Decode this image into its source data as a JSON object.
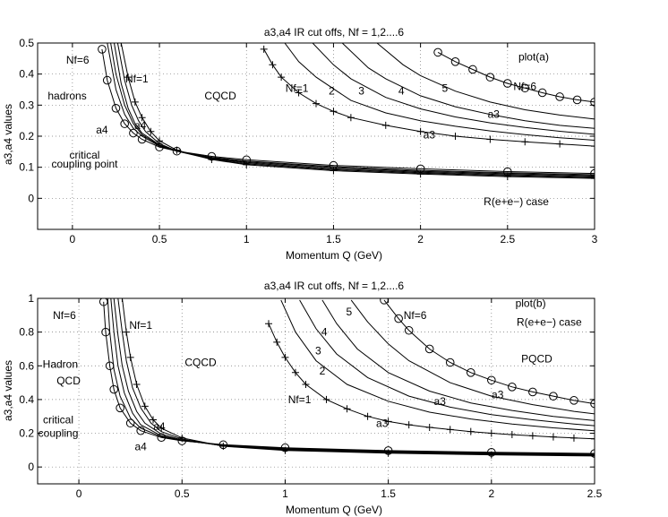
{
  "chart_data": [
    {
      "type": "line",
      "title": "a3,a4 IR cut offs, Nf = 1,2....6",
      "xlabel": "Momentum Q (GeV)",
      "ylabel": "a3,a4 values",
      "xlim": [
        -0.2,
        3
      ],
      "ylim": [
        -0.1,
        0.5
      ],
      "xticks": [
        0,
        0.5,
        1,
        1.5,
        2,
        2.5,
        3
      ],
      "xtick_labels": [
        "0",
        "0.5",
        "1",
        "1.5",
        "2",
        "2.5",
        "3"
      ],
      "yticks": [
        0,
        0.1,
        0.2,
        0.3,
        0.4,
        0.5
      ],
      "ytick_labels": [
        "0",
        "0.1",
        "0.2",
        "0.3",
        "0.4",
        "0.5"
      ],
      "grid": true,
      "annotations": [
        {
          "text": "plot(a)",
          "x": 2.65,
          "y": 0.455
        },
        {
          "text": "Nf=6",
          "x": 0.03,
          "y": 0.445
        },
        {
          "text": "Nf=1",
          "x": 0.37,
          "y": 0.385
        },
        {
          "text": "hadrons",
          "x": -0.03,
          "y": 0.33
        },
        {
          "text": "CQCD",
          "x": 0.85,
          "y": 0.33
        },
        {
          "text": "a4",
          "x": 0.17,
          "y": 0.22
        },
        {
          "text": "a4",
          "x": 0.39,
          "y": 0.235
        },
        {
          "text": "critical",
          "x": 0.07,
          "y": 0.14
        },
        {
          "text": "coupling point",
          "x": 0.07,
          "y": 0.11
        },
        {
          "text": "Nf=1",
          "x": 1.29,
          "y": 0.355
        },
        {
          "text": "2",
          "x": 1.49,
          "y": 0.345
        },
        {
          "text": "3",
          "x": 1.66,
          "y": 0.345
        },
        {
          "text": "4",
          "x": 1.89,
          "y": 0.345
        },
        {
          "text": "5",
          "x": 2.14,
          "y": 0.355
        },
        {
          "text": "Nf=6",
          "x": 2.6,
          "y": 0.36
        },
        {
          "text": "a3",
          "x": 2.42,
          "y": 0.27
        },
        {
          "text": "a3",
          "x": 2.05,
          "y": 0.205
        },
        {
          "text": "R(e+e−) case",
          "x": 2.55,
          "y": -0.01
        }
      ],
      "series": [
        {
          "name": "a4 Nf=6",
          "marker": "o",
          "x": [
            0.17,
            0.2,
            0.25,
            0.3,
            0.35,
            0.4,
            0.5,
            0.6,
            0.8,
            1.0,
            1.5,
            2.0,
            2.5,
            3.0
          ],
          "y": [
            0.48,
            0.38,
            0.29,
            0.24,
            0.21,
            0.19,
            0.165,
            0.152,
            0.135,
            0.124,
            0.106,
            0.095,
            0.086,
            0.08
          ]
        },
        {
          "name": "a4 Nf=5",
          "x": [
            0.2,
            0.25,
            0.3,
            0.35,
            0.4,
            0.5,
            0.6,
            0.8,
            1.0,
            1.5,
            2.0,
            2.5,
            3.0
          ],
          "y": [
            0.5,
            0.35,
            0.27,
            0.225,
            0.2,
            0.168,
            0.152,
            0.132,
            0.12,
            0.102,
            0.09,
            0.082,
            0.076
          ]
        },
        {
          "name": "a4 Nf=4",
          "x": [
            0.22,
            0.25,
            0.3,
            0.35,
            0.4,
            0.5,
            0.6,
            0.8,
            1.0,
            1.5,
            2.0,
            2.5,
            3.0
          ],
          "y": [
            0.5,
            0.4,
            0.3,
            0.24,
            0.205,
            0.17,
            0.152,
            0.13,
            0.117,
            0.099,
            0.087,
            0.079,
            0.073
          ]
        },
        {
          "name": "a4 Nf=3",
          "x": [
            0.24,
            0.28,
            0.32,
            0.36,
            0.4,
            0.5,
            0.6,
            0.8,
            1.0,
            1.5,
            2.0,
            2.5,
            3.0
          ],
          "y": [
            0.5,
            0.37,
            0.29,
            0.24,
            0.21,
            0.172,
            0.152,
            0.128,
            0.114,
            0.095,
            0.084,
            0.076,
            0.07
          ]
        },
        {
          "name": "a4 Nf=2",
          "x": [
            0.26,
            0.3,
            0.34,
            0.38,
            0.42,
            0.5,
            0.6,
            0.8,
            1.0,
            1.5,
            2.0,
            2.5,
            3.0
          ],
          "y": [
            0.5,
            0.38,
            0.3,
            0.25,
            0.215,
            0.176,
            0.152,
            0.126,
            0.111,
            0.092,
            0.081,
            0.073,
            0.067
          ]
        },
        {
          "name": "a4 Nf=1",
          "marker": "+",
          "x": [
            0.28,
            0.32,
            0.36,
            0.4,
            0.45,
            0.5,
            0.6,
            0.8,
            1.0,
            1.5,
            2.0,
            2.5,
            3.0
          ],
          "y": [
            0.5,
            0.39,
            0.31,
            0.26,
            0.215,
            0.185,
            0.155,
            0.125,
            0.108,
            0.089,
            0.078,
            0.07,
            0.064
          ]
        },
        {
          "name": "a3 Nf=6",
          "marker": "o",
          "x": [
            2.1,
            2.2,
            2.3,
            2.4,
            2.5,
            2.6,
            2.7,
            2.8,
            2.9,
            3.0
          ],
          "y": [
            0.47,
            0.44,
            0.415,
            0.39,
            0.37,
            0.355,
            0.34,
            0.327,
            0.317,
            0.31
          ]
        },
        {
          "name": "a3 Nf=5",
          "x": [
            1.75,
            1.9,
            2.0,
            2.2,
            2.4,
            2.6,
            2.8,
            3.0
          ],
          "y": [
            0.5,
            0.43,
            0.395,
            0.345,
            0.31,
            0.285,
            0.268,
            0.255
          ]
        },
        {
          "name": "a3 Nf=4",
          "x": [
            1.55,
            1.7,
            1.8,
            2.0,
            2.2,
            2.4,
            2.6,
            2.8,
            3.0
          ],
          "y": [
            0.5,
            0.42,
            0.385,
            0.33,
            0.295,
            0.27,
            0.25,
            0.235,
            0.225
          ]
        },
        {
          "name": "a3 Nf=3",
          "x": [
            1.38,
            1.5,
            1.6,
            1.8,
            2.0,
            2.2,
            2.4,
            2.6,
            2.8,
            3.0
          ],
          "y": [
            0.5,
            0.43,
            0.385,
            0.325,
            0.288,
            0.262,
            0.243,
            0.228,
            0.216,
            0.206
          ]
        },
        {
          "name": "a3 Nf=2",
          "x": [
            1.22,
            1.3,
            1.4,
            1.6,
            1.8,
            2.0,
            2.2,
            2.4,
            2.6,
            2.8,
            3.0
          ],
          "y": [
            0.5,
            0.44,
            0.39,
            0.315,
            0.275,
            0.25,
            0.232,
            0.217,
            0.205,
            0.195,
            0.187
          ]
        },
        {
          "name": "a3 Nf=1",
          "marker": "+",
          "x": [
            1.1,
            1.15,
            1.2,
            1.3,
            1.4,
            1.5,
            1.6,
            1.8,
            2.0,
            2.2,
            2.4,
            2.6,
            2.8,
            3.0
          ],
          "y": [
            0.48,
            0.43,
            0.39,
            0.34,
            0.305,
            0.28,
            0.26,
            0.235,
            0.215,
            0.2,
            0.19,
            0.182,
            0.175,
            0.168
          ]
        }
      ]
    },
    {
      "type": "line",
      "title": "a3,a4 IR cut offs, Nf = 1,2....6",
      "xlabel": "Momentum Q (GeV)",
      "ylabel": "a3,a4 values",
      "xlim": [
        -0.2,
        2.5
      ],
      "ylim": [
        -0.1,
        1
      ],
      "xticks": [
        0,
        0.5,
        1,
        1.5,
        2,
        2.5
      ],
      "xtick_labels": [
        "0",
        "0.5",
        "1",
        "1.5",
        "2",
        "2.5"
      ],
      "yticks": [
        0,
        0.2,
        0.4,
        0.6,
        0.8,
        1
      ],
      "ytick_labels": [
        "0",
        "0.2",
        "0.4",
        "0.6",
        "0.8",
        "1"
      ],
      "grid": true,
      "annotations": [
        {
          "text": "Nf=6",
          "x": -0.07,
          "y": 0.9
        },
        {
          "text": "Nf=1",
          "x": 0.3,
          "y": 0.84
        },
        {
          "text": "Hadron",
          "x": -0.09,
          "y": 0.61
        },
        {
          "text": "QCD",
          "x": -0.05,
          "y": 0.51
        },
        {
          "text": "CQCD",
          "x": 0.59,
          "y": 0.62
        },
        {
          "text": "critical",
          "x": -0.1,
          "y": 0.28
        },
        {
          "text": "coupling",
          "x": -0.1,
          "y": 0.2
        },
        {
          "text": "a4",
          "x": 0.39,
          "y": 0.24
        },
        {
          "text": "a4",
          "x": 0.3,
          "y": 0.12
        },
        {
          "text": "5",
          "x": 1.31,
          "y": 0.92
        },
        {
          "text": "4",
          "x": 1.19,
          "y": 0.8
        },
        {
          "text": "3",
          "x": 1.16,
          "y": 0.69
        },
        {
          "text": "2",
          "x": 1.18,
          "y": 0.57
        },
        {
          "text": "Nf=1",
          "x": 1.07,
          "y": 0.4
        },
        {
          "text": "Nf=6",
          "x": 1.63,
          "y": 0.9
        },
        {
          "text": "plot(b)",
          "x": 2.19,
          "y": 0.97
        },
        {
          "text": "R(e+e−) case",
          "x": 2.28,
          "y": 0.86
        },
        {
          "text": "PQCD",
          "x": 2.22,
          "y": 0.64
        },
        {
          "text": "a3",
          "x": 1.75,
          "y": 0.39
        },
        {
          "text": "a3",
          "x": 2.03,
          "y": 0.43
        },
        {
          "text": "a3",
          "x": 1.47,
          "y": 0.26
        }
      ],
      "series": [
        {
          "name": "a4 Nf=6",
          "marker": "o",
          "x": [
            0.12,
            0.13,
            0.15,
            0.17,
            0.2,
            0.25,
            0.3,
            0.4,
            0.5,
            0.7,
            1.0,
            1.5,
            2.0,
            2.5
          ],
          "y": [
            0.98,
            0.8,
            0.6,
            0.46,
            0.35,
            0.26,
            0.215,
            0.175,
            0.155,
            0.132,
            0.114,
            0.097,
            0.087,
            0.08
          ]
        },
        {
          "name": "a4 Nf=5",
          "x": [
            0.14,
            0.15,
            0.17,
            0.2,
            0.25,
            0.3,
            0.4,
            0.5,
            0.7,
            1.0,
            1.5,
            2.0,
            2.5
          ],
          "y": [
            1.0,
            0.8,
            0.58,
            0.42,
            0.29,
            0.23,
            0.18,
            0.157,
            0.13,
            0.11,
            0.094,
            0.084,
            0.077
          ]
        },
        {
          "name": "a4 Nf=4",
          "x": [
            0.155,
            0.17,
            0.19,
            0.22,
            0.26,
            0.3,
            0.4,
            0.5,
            0.7,
            1.0,
            1.5,
            2.0,
            2.5
          ],
          "y": [
            1.0,
            0.8,
            0.6,
            0.44,
            0.32,
            0.25,
            0.185,
            0.158,
            0.128,
            0.107,
            0.091,
            0.081,
            0.074
          ]
        },
        {
          "name": "a4 Nf=3",
          "x": [
            0.17,
            0.19,
            0.21,
            0.24,
            0.28,
            0.32,
            0.4,
            0.5,
            0.7,
            1.0,
            1.5,
            2.0,
            2.5
          ],
          "y": [
            1.0,
            0.78,
            0.6,
            0.45,
            0.33,
            0.26,
            0.195,
            0.16,
            0.126,
            0.104,
            0.088,
            0.078,
            0.071
          ]
        },
        {
          "name": "a4 Nf=2",
          "x": [
            0.19,
            0.21,
            0.23,
            0.26,
            0.3,
            0.35,
            0.4,
            0.5,
            0.7,
            1.0,
            1.5,
            2.0,
            2.5
          ],
          "y": [
            1.0,
            0.8,
            0.63,
            0.47,
            0.35,
            0.26,
            0.21,
            0.165,
            0.124,
            0.101,
            0.085,
            0.075,
            0.068
          ]
        },
        {
          "name": "a4 Nf=1",
          "marker": "+",
          "x": [
            0.21,
            0.23,
            0.25,
            0.28,
            0.32,
            0.36,
            0.4,
            0.5,
            0.7,
            1.0,
            1.5,
            2.0,
            2.5
          ],
          "y": [
            1.0,
            0.8,
            0.65,
            0.49,
            0.36,
            0.28,
            0.23,
            0.172,
            0.123,
            0.098,
            0.082,
            0.072,
            0.065
          ]
        },
        {
          "name": "a3 Nf=6",
          "marker": "o",
          "x": [
            1.48,
            1.55,
            1.6,
            1.7,
            1.8,
            1.9,
            2.0,
            2.1,
            2.2,
            2.3,
            2.4,
            2.5
          ],
          "y": [
            0.99,
            0.88,
            0.81,
            0.7,
            0.62,
            0.56,
            0.515,
            0.475,
            0.445,
            0.42,
            0.395,
            0.375
          ]
        },
        {
          "name": "a3 Nf=5",
          "x": [
            1.32,
            1.4,
            1.5,
            1.6,
            1.8,
            2.0,
            2.2,
            2.4,
            2.5
          ],
          "y": [
            0.99,
            0.86,
            0.73,
            0.63,
            0.5,
            0.42,
            0.37,
            0.33,
            0.315
          ]
        },
        {
          "name": "a3 Nf=4",
          "x": [
            1.18,
            1.25,
            1.35,
            1.5,
            1.7,
            1.9,
            2.1,
            2.3,
            2.5
          ],
          "y": [
            0.99,
            0.85,
            0.7,
            0.56,
            0.45,
            0.38,
            0.335,
            0.3,
            0.275
          ]
        },
        {
          "name": "a3 Nf=3",
          "x": [
            1.07,
            1.15,
            1.25,
            1.4,
            1.6,
            1.8,
            2.0,
            2.2,
            2.4,
            2.5
          ],
          "y": [
            0.99,
            0.82,
            0.67,
            0.53,
            0.42,
            0.355,
            0.31,
            0.28,
            0.255,
            0.245
          ]
        },
        {
          "name": "a3 Nf=2",
          "x": [
            0.98,
            1.05,
            1.15,
            1.3,
            1.5,
            1.7,
            1.9,
            2.1,
            2.3,
            2.5
          ],
          "y": [
            0.99,
            0.8,
            0.63,
            0.49,
            0.39,
            0.325,
            0.285,
            0.255,
            0.232,
            0.215
          ]
        },
        {
          "name": "a3 Nf=1",
          "marker": "+",
          "x": [
            0.92,
            0.96,
            1.0,
            1.05,
            1.1,
            1.2,
            1.3,
            1.4,
            1.5,
            1.6,
            1.7,
            1.8,
            1.9,
            2.0,
            2.1,
            2.2,
            2.3,
            2.4,
            2.5
          ],
          "y": [
            0.85,
            0.74,
            0.65,
            0.56,
            0.49,
            0.4,
            0.345,
            0.3,
            0.27,
            0.25,
            0.235,
            0.222,
            0.21,
            0.2,
            0.192,
            0.185,
            0.178,
            0.172,
            0.167
          ]
        }
      ]
    }
  ]
}
